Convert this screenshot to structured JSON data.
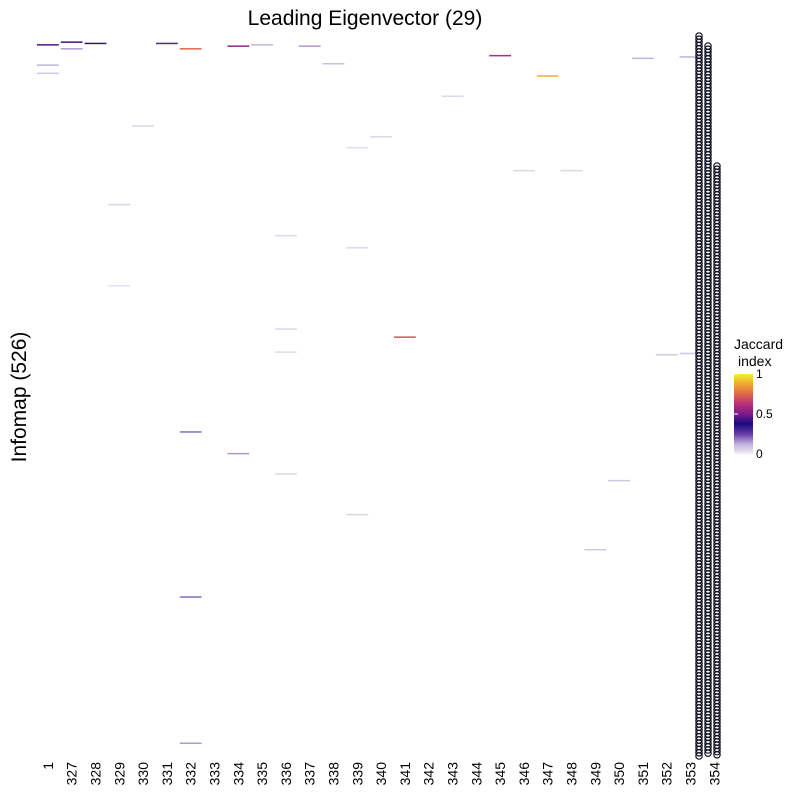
{
  "chart_data": {
    "type": "heatmap",
    "title": "Leading Eigenvector (29)",
    "xlabel": "",
    "ylabel": "Infomap (526)",
    "x_categories": [
      "1",
      "327",
      "328",
      "329",
      "330",
      "331",
      "332",
      "333",
      "334",
      "335",
      "336",
      "337",
      "338",
      "339",
      "340",
      "341",
      "342",
      "343",
      "344",
      "345",
      "346",
      "347",
      "348",
      "349",
      "350",
      "351",
      "352",
      "353",
      "354"
    ],
    "y_count": 526,
    "colorbar": {
      "title": [
        "Jaccard",
        "index"
      ],
      "range": [
        0,
        1
      ],
      "ticks": [
        0,
        0.5,
        1
      ],
      "tick_labels": [
        "0",
        "0.5",
        "1"
      ],
      "palette": [
        "#f1eef6",
        "#bfb2dc",
        "#6a3aa8",
        "#1b0a80",
        "#7a1a8c",
        "#b8307a",
        "#e0684a",
        "#f0a830",
        "#f4f035"
      ]
    },
    "cells": [
      {
        "x": "1",
        "y": 3,
        "value": 0.45
      },
      {
        "x": "1",
        "y": 18,
        "value": 0.12
      },
      {
        "x": "1",
        "y": 24,
        "value": 0.08
      },
      {
        "x": "327",
        "y": 1,
        "value": 0.42
      },
      {
        "x": "327",
        "y": 6,
        "value": 0.15
      },
      {
        "x": "328",
        "y": 2,
        "value": 0.35
      },
      {
        "x": "329",
        "y": 121,
        "value": 0.05
      },
      {
        "x": "329",
        "y": 181,
        "value": 0.03
      },
      {
        "x": "330",
        "y": 63,
        "value": 0.05
      },
      {
        "x": "331",
        "y": 2,
        "value": 0.3
      },
      {
        "x": "332",
        "y": 6,
        "value": 0.75
      },
      {
        "x": "332",
        "y": 289,
        "value": 0.2
      },
      {
        "x": "332",
        "y": 411,
        "value": 0.2
      },
      {
        "x": "332",
        "y": 519,
        "value": 0.15
      },
      {
        "x": "334",
        "y": 4,
        "value": 0.55
      },
      {
        "x": "334",
        "y": 305,
        "value": 0.15
      },
      {
        "x": "335",
        "y": 3,
        "value": 0.12
      },
      {
        "x": "336",
        "y": 144,
        "value": 0.05
      },
      {
        "x": "336",
        "y": 213,
        "value": 0.05
      },
      {
        "x": "336",
        "y": 230,
        "value": 0.04
      },
      {
        "x": "336",
        "y": 320,
        "value": 0.05
      },
      {
        "x": "337",
        "y": 4,
        "value": 0.15
      },
      {
        "x": "338",
        "y": 17,
        "value": 0.1
      },
      {
        "x": "339",
        "y": 79,
        "value": 0.04
      },
      {
        "x": "339",
        "y": 153,
        "value": 0.05
      },
      {
        "x": "339",
        "y": 350,
        "value": 0.05
      },
      {
        "x": "340",
        "y": 71,
        "value": 0.05
      },
      {
        "x": "341",
        "y": 219,
        "value": 0.7
      },
      {
        "x": "343",
        "y": 41,
        "value": 0.05
      },
      {
        "x": "345",
        "y": 11,
        "value": 0.6
      },
      {
        "x": "346",
        "y": 96,
        "value": 0.05
      },
      {
        "x": "347",
        "y": 26,
        "value": 0.88
      },
      {
        "x": "348",
        "y": 96,
        "value": 0.05
      },
      {
        "x": "349",
        "y": 376,
        "value": 0.08
      },
      {
        "x": "350",
        "y": 325,
        "value": 0.08
      },
      {
        "x": "351",
        "y": 13,
        "value": 0.12
      },
      {
        "x": "352",
        "y": 232,
        "value": 0.08
      },
      {
        "x": "353",
        "y": 12,
        "value": 0.12
      },
      {
        "x": "353",
        "y": 231,
        "value": 0.08
      }
    ]
  }
}
